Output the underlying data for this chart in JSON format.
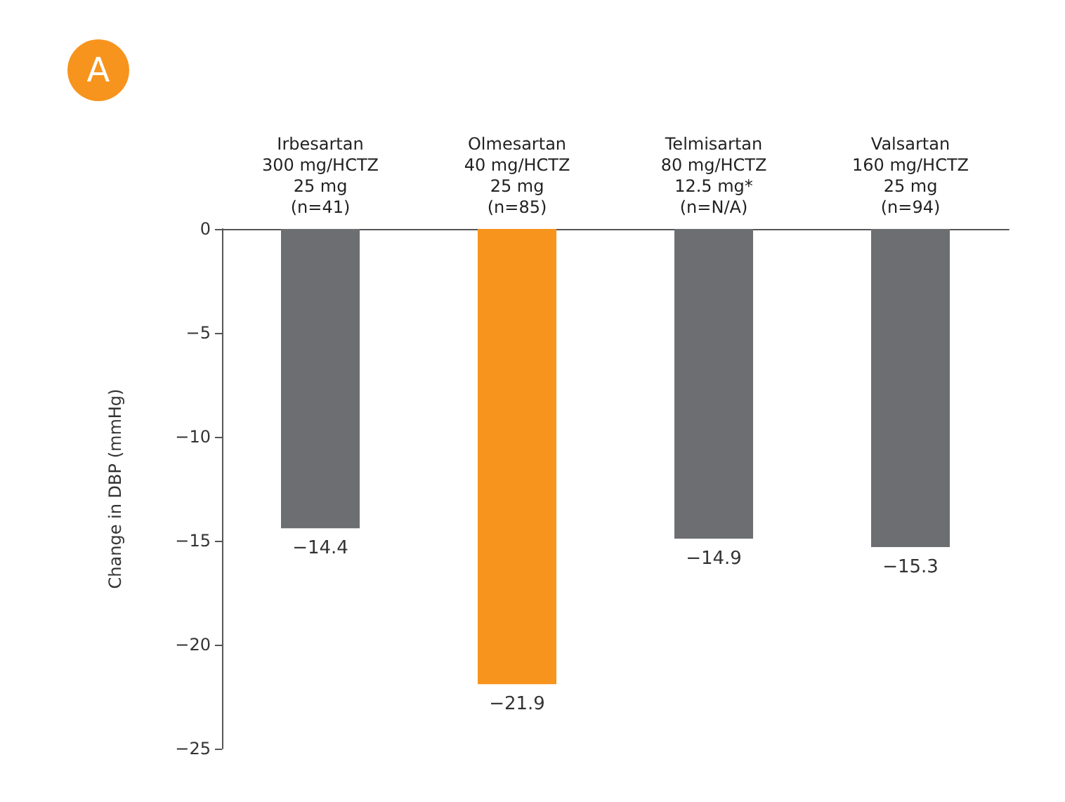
{
  "chart_data": {
    "type": "bar",
    "annotations": [
      "A"
    ],
    "ylabel": "Change in DBP (mmHg)",
    "categories": [
      "Irbesartan\n300 mg/HCTZ\n25 mg\n(n=41)",
      "Olmesartan\n40 mg/HCTZ\n25 mg\n(n=85)",
      "Telmisartan\n80 mg/HCTZ\n12.5 mg*\n(n=N/A)",
      "Valsartan\n160 mg/HCTZ\n25 mg\n(n=94)"
    ],
    "values": [
      -14.4,
      -21.9,
      -14.9,
      -15.3
    ],
    "colors": [
      "#6d6e71",
      "#f7941d",
      "#6d6e71",
      "#6d6e71"
    ],
    "ylim": [
      -25,
      0
    ],
    "yticks": [
      0,
      -5,
      -10,
      -15,
      -20,
      -25
    ],
    "grid": false,
    "data_labels": true
  }
}
